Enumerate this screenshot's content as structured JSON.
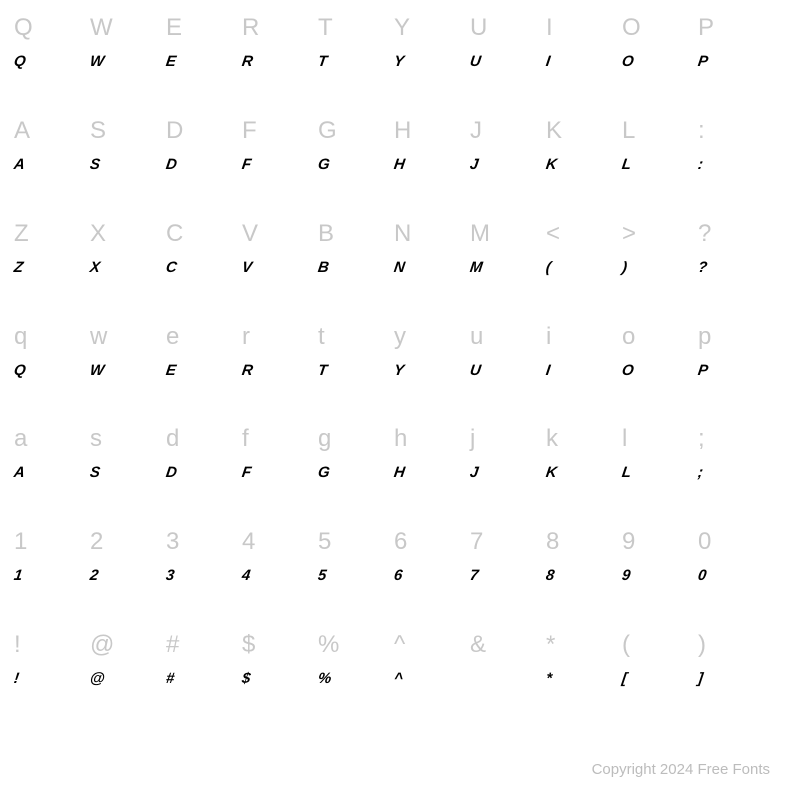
{
  "grid": {
    "columns": 10,
    "rows": 7,
    "cells": [
      {
        "ref": "Q",
        "sample": "Q"
      },
      {
        "ref": "W",
        "sample": "W"
      },
      {
        "ref": "E",
        "sample": "E"
      },
      {
        "ref": "R",
        "sample": "R"
      },
      {
        "ref": "T",
        "sample": "T"
      },
      {
        "ref": "Y",
        "sample": "Y"
      },
      {
        "ref": "U",
        "sample": "U"
      },
      {
        "ref": "I",
        "sample": "I"
      },
      {
        "ref": "O",
        "sample": "O"
      },
      {
        "ref": "P",
        "sample": "P"
      },
      {
        "ref": "A",
        "sample": "A"
      },
      {
        "ref": "S",
        "sample": "S"
      },
      {
        "ref": "D",
        "sample": "D"
      },
      {
        "ref": "F",
        "sample": "F"
      },
      {
        "ref": "G",
        "sample": "G"
      },
      {
        "ref": "H",
        "sample": "H"
      },
      {
        "ref": "J",
        "sample": "J"
      },
      {
        "ref": "K",
        "sample": "K"
      },
      {
        "ref": "L",
        "sample": "L"
      },
      {
        "ref": ":",
        "sample": ":"
      },
      {
        "ref": "Z",
        "sample": "Z"
      },
      {
        "ref": "X",
        "sample": "X"
      },
      {
        "ref": "C",
        "sample": "C"
      },
      {
        "ref": "V",
        "sample": "V"
      },
      {
        "ref": "B",
        "sample": "B"
      },
      {
        "ref": "N",
        "sample": "N"
      },
      {
        "ref": "M",
        "sample": "M"
      },
      {
        "ref": "<",
        "sample": "("
      },
      {
        "ref": ">",
        "sample": ")"
      },
      {
        "ref": "?",
        "sample": "?"
      },
      {
        "ref": "q",
        "sample": "Q"
      },
      {
        "ref": "w",
        "sample": "W"
      },
      {
        "ref": "e",
        "sample": "E"
      },
      {
        "ref": "r",
        "sample": "R"
      },
      {
        "ref": "t",
        "sample": "T"
      },
      {
        "ref": "y",
        "sample": "Y"
      },
      {
        "ref": "u",
        "sample": "U"
      },
      {
        "ref": "i",
        "sample": "I"
      },
      {
        "ref": "o",
        "sample": "O"
      },
      {
        "ref": "p",
        "sample": "P"
      },
      {
        "ref": "a",
        "sample": "A"
      },
      {
        "ref": "s",
        "sample": "S"
      },
      {
        "ref": "d",
        "sample": "D"
      },
      {
        "ref": "f",
        "sample": "F"
      },
      {
        "ref": "g",
        "sample": "G"
      },
      {
        "ref": "h",
        "sample": "H"
      },
      {
        "ref": "j",
        "sample": "J"
      },
      {
        "ref": "k",
        "sample": "K"
      },
      {
        "ref": "l",
        "sample": "L"
      },
      {
        "ref": ";",
        "sample": ";"
      },
      {
        "ref": "1",
        "sample": "1"
      },
      {
        "ref": "2",
        "sample": "2"
      },
      {
        "ref": "3",
        "sample": "3"
      },
      {
        "ref": "4",
        "sample": "4"
      },
      {
        "ref": "5",
        "sample": "5"
      },
      {
        "ref": "6",
        "sample": "6"
      },
      {
        "ref": "7",
        "sample": "7"
      },
      {
        "ref": "8",
        "sample": "8"
      },
      {
        "ref": "9",
        "sample": "9"
      },
      {
        "ref": "0",
        "sample": "0"
      },
      {
        "ref": "!",
        "sample": "!"
      },
      {
        "ref": "@",
        "sample": "@"
      },
      {
        "ref": "#",
        "sample": "#"
      },
      {
        "ref": "$",
        "sample": "$"
      },
      {
        "ref": "%",
        "sample": "%"
      },
      {
        "ref": "^",
        "sample": "^"
      },
      {
        "ref": "&",
        "sample": ""
      },
      {
        "ref": "*",
        "sample": "*"
      },
      {
        "ref": "(",
        "sample": "["
      },
      {
        "ref": ")",
        "sample": "]"
      }
    ],
    "reference_color": "#c8c8c8",
    "sample_color": "#000000",
    "reference_fontsize": 24,
    "sample_fontsize": 15,
    "background_color": "#ffffff"
  },
  "footer": {
    "text": "Copyright 2024 Free Fonts",
    "color": "#bcbcbc",
    "fontsize": 15
  }
}
